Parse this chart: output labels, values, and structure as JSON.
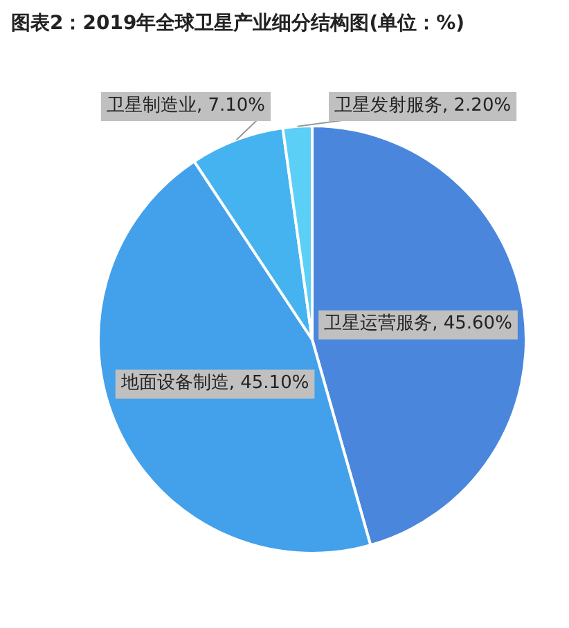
{
  "chart_data": {
    "type": "pie",
    "title": "图表2：2019年全球卫星产业细分结构图(单位：%)",
    "categories": [
      "卫星运营服务",
      "地面设备制造",
      "卫星制造业",
      "卫星发射服务"
    ],
    "values": [
      45.6,
      45.1,
      7.1,
      2.2
    ],
    "value_labels": [
      "45.60%",
      "45.10%",
      "7.10%",
      "2.20%"
    ],
    "colors": [
      "#4a86dc",
      "#43a0ea",
      "#45b3f0",
      "#5ccff6"
    ],
    "legend": false
  }
}
